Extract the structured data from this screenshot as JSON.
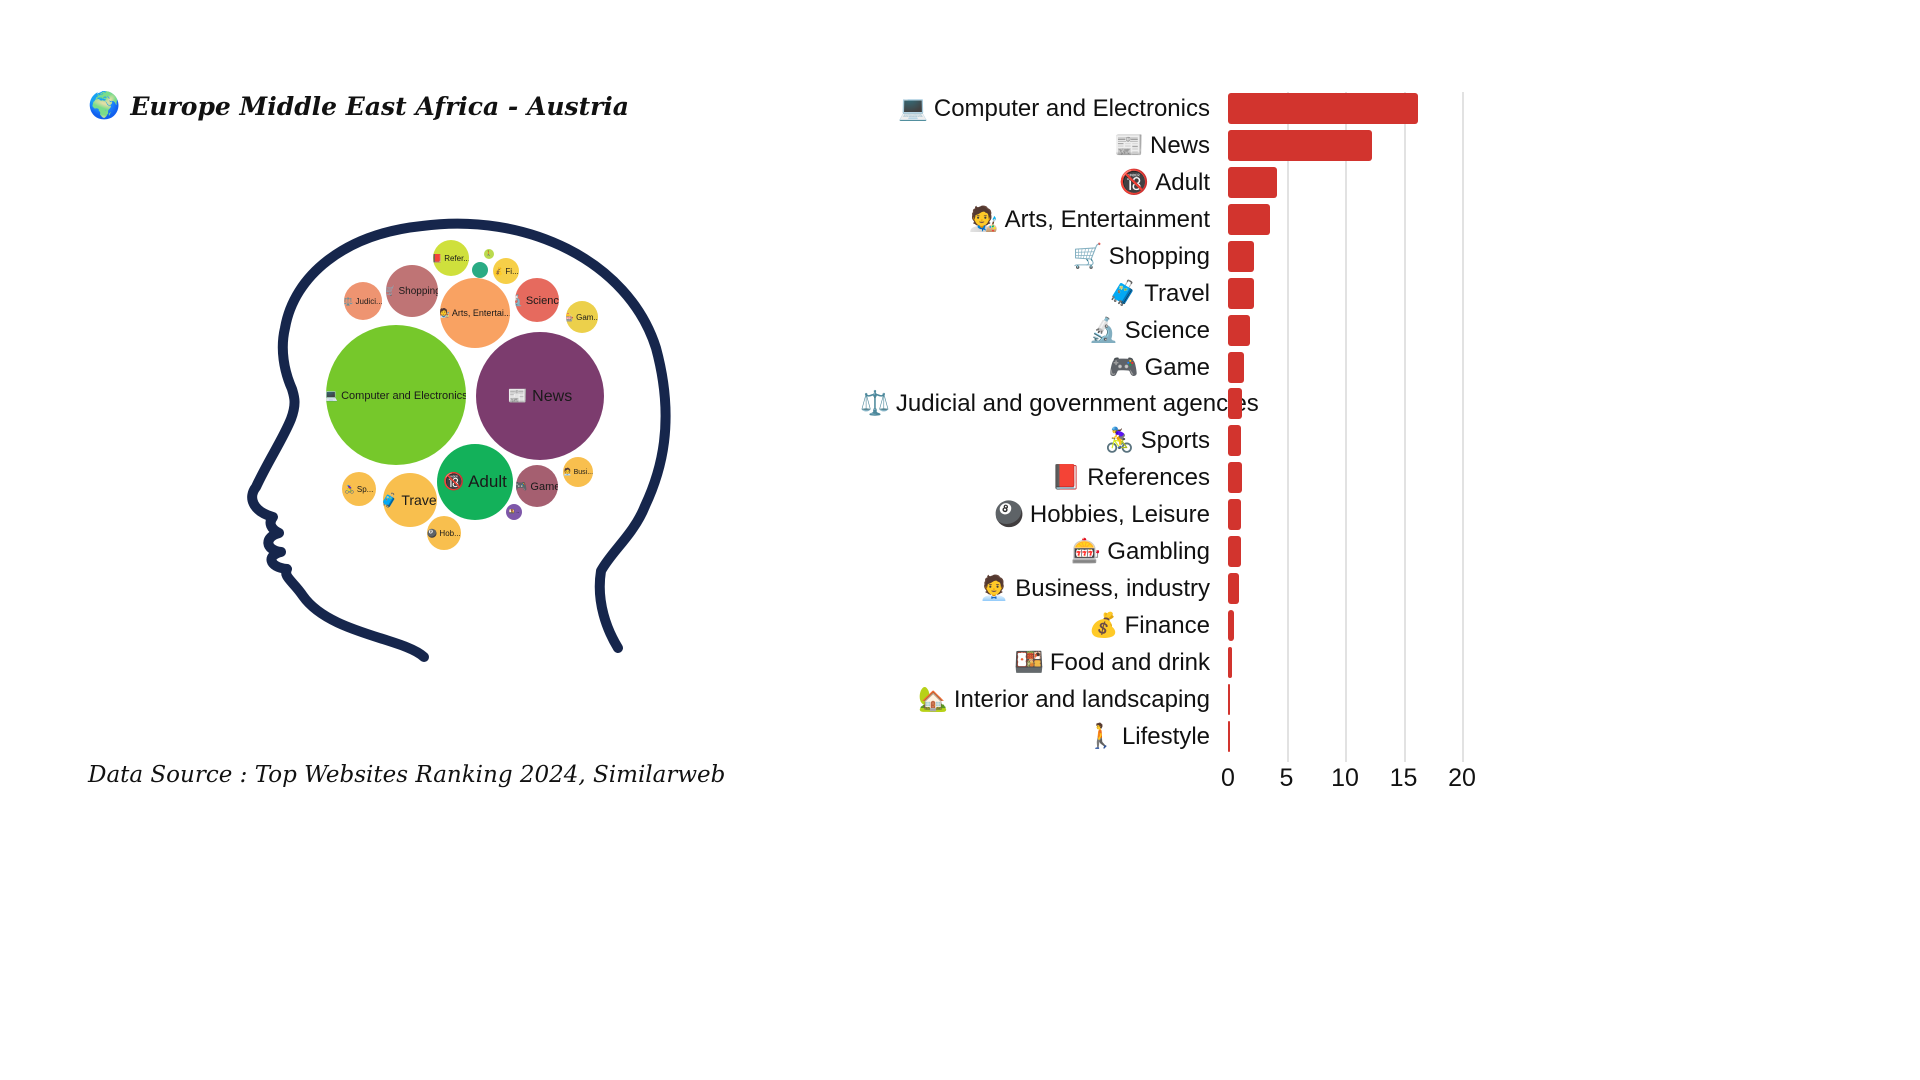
{
  "title": {
    "icon": "🌍",
    "text": "Europe Middle East Africa - Austria"
  },
  "source_note": "Data Source : Top Websites Ranking 2024, Similarweb",
  "colors": {
    "bar": "#d2342e",
    "head_outline": "#16264c",
    "gridline": "#e2e2e2"
  },
  "chart_data": [
    {
      "type": "bar",
      "orientation": "horizontal",
      "title": "",
      "xlabel": "",
      "ylabel": "",
      "xlim": [
        0,
        20
      ],
      "xticks": [
        0,
        5,
        10,
        15,
        20
      ],
      "grid": true,
      "bar_color": "#d2342e",
      "items": [
        {
          "icon": "💻",
          "icon_name": "laptop-icon",
          "label": "Computer and Electronics",
          "value": 16.2
        },
        {
          "icon": "📰",
          "icon_name": "newspaper-icon",
          "label": "News",
          "value": 12.3
        },
        {
          "icon": "🔞",
          "icon_name": "no-under-18-icon",
          "label": "Adult",
          "value": 4.2
        },
        {
          "icon": "🧑‍🎨",
          "icon_name": "artist-icon",
          "label": "Arts, Entertainment",
          "value": 3.6
        },
        {
          "icon": "🛒",
          "icon_name": "shopping-cart-icon",
          "label": "Shopping",
          "value": 2.2
        },
        {
          "icon": "🧳",
          "icon_name": "luggage-icon",
          "label": "Travel",
          "value": 2.2
        },
        {
          "icon": "🔬",
          "icon_name": "microscope-icon",
          "label": "Science",
          "value": 1.9
        },
        {
          "icon": "🎮",
          "icon_name": "gamepad-icon",
          "label": "Game",
          "value": 1.4
        },
        {
          "icon": "⚖️",
          "icon_name": "scales-icon",
          "label": "Judicial and government agencies",
          "value": 1.2
        },
        {
          "icon": "🚴‍♀️",
          "icon_name": "cyclist-icon",
          "label": "Sports",
          "value": 1.1
        },
        {
          "icon": "📕",
          "icon_name": "book-icon",
          "label": "References",
          "value": 1.2
        },
        {
          "icon": "🎱",
          "icon_name": "eight-ball-icon",
          "label": "Hobbies, Leisure",
          "value": 1.1
        },
        {
          "icon": "🎰",
          "icon_name": "slot-machine-icon",
          "label": "Gambling",
          "value": 1.1
        },
        {
          "icon": "🧑‍💼",
          "icon_name": "office-worker-icon",
          "label": "Business, industry",
          "value": 0.9
        },
        {
          "icon": "💰",
          "icon_name": "money-bag-icon",
          "label": "Finance",
          "value": 0.55
        },
        {
          "icon": "🍱",
          "icon_name": "bento-box-icon",
          "label": "Food and drink",
          "value": 0.3
        },
        {
          "icon": "🏡",
          "icon_name": "house-garden-icon",
          "label": "Interior and landscaping",
          "value": 0.15
        },
        {
          "icon": "🚶",
          "icon_name": "walking-person-icon",
          "label": "Lifestyle",
          "value": 0.15
        }
      ]
    },
    {
      "type": "bubble-pack",
      "title": "",
      "note": "category bubbles packed inside a head silhouette, size = share",
      "bubbles": [
        {
          "name": "computer-and-electronics",
          "icon": "💻",
          "text": "Computer and Electronics",
          "color": "#76c82b",
          "x": 396,
          "y": 395,
          "r": 70,
          "fs": 11
        },
        {
          "name": "news",
          "icon": "📰",
          "text": "News",
          "color": "#7c3c6e",
          "x": 540,
          "y": 396,
          "r": 64,
          "fs": 16
        },
        {
          "name": "arts-entertainment",
          "icon": "🧑‍🎨",
          "text": "Arts, Entertai...",
          "color": "#f9a262",
          "x": 475,
          "y": 313,
          "r": 35,
          "fs": 9
        },
        {
          "name": "shopping",
          "icon": "🛒",
          "text": "Shopping",
          "color": "#bf7475",
          "x": 412,
          "y": 291,
          "r": 26,
          "fs": 10
        },
        {
          "name": "judicial-agencies",
          "icon": "⚖️",
          "text": "Judici...",
          "color": "#ee9471",
          "x": 363,
          "y": 301,
          "r": 19,
          "fs": 8
        },
        {
          "name": "references",
          "icon": "📕",
          "text": "Refer...",
          "color": "#cfe03c",
          "x": 451,
          "y": 258,
          "r": 18,
          "fs": 8
        },
        {
          "name": "lifestyle",
          "icon": "🚶",
          "text": "",
          "color": "#bada4e",
          "x": 489,
          "y": 254,
          "r": 5,
          "fs": 5
        },
        {
          "name": "interior-and-landscaping",
          "icon": "",
          "text": "",
          "color": "#2aab84",
          "x": 480,
          "y": 270,
          "r": 8,
          "fs": 0
        },
        {
          "name": "finance",
          "icon": "💰",
          "text": "Fi...",
          "color": "#f6cf48",
          "x": 506,
          "y": 271,
          "r": 13,
          "fs": 8
        },
        {
          "name": "science",
          "icon": "🔬",
          "text": "Science",
          "color": "#e66a5e",
          "x": 537,
          "y": 300,
          "r": 22,
          "fs": 11
        },
        {
          "name": "gambling",
          "icon": "🎰",
          "text": "Gam...",
          "color": "#ecd04b",
          "x": 582,
          "y": 317,
          "r": 16,
          "fs": 8
        },
        {
          "name": "adult",
          "icon": "🔞",
          "text": "Adult",
          "color": "#13b15a",
          "x": 475,
          "y": 482,
          "r": 38,
          "fs": 17
        },
        {
          "name": "travel",
          "icon": "🧳",
          "text": "Travel",
          "color": "#f8bf4e",
          "x": 410,
          "y": 500,
          "r": 27,
          "fs": 14
        },
        {
          "name": "sports",
          "icon": "🚴‍♀️",
          "text": "Sp...",
          "color": "#f8bf4e",
          "x": 359,
          "y": 489,
          "r": 17,
          "fs": 8
        },
        {
          "name": "game",
          "icon": "🎮",
          "text": "Game",
          "color": "#a55f70",
          "x": 537,
          "y": 486,
          "r": 21,
          "fs": 11
        },
        {
          "name": "business-industry",
          "icon": "🧑‍💼",
          "text": "Busi...",
          "color": "#f8bf4e",
          "x": 578,
          "y": 472,
          "r": 15,
          "fs": 7
        },
        {
          "name": "food-and-drink",
          "icon": "🍱",
          "text": "..",
          "color": "#7e57a9",
          "x": 514,
          "y": 512,
          "r": 8,
          "fs": 5
        },
        {
          "name": "hobbies-leisure",
          "icon": "🎱",
          "text": "Hob...",
          "color": "#f8bf4e",
          "x": 444,
          "y": 533,
          "r": 17,
          "fs": 8
        }
      ]
    }
  ]
}
